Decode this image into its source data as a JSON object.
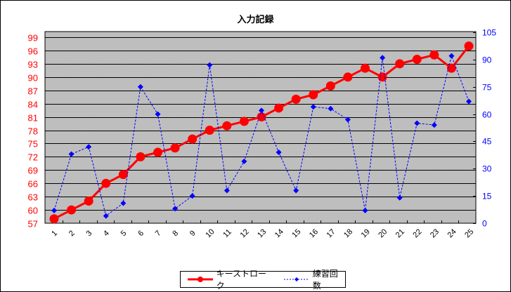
{
  "chart_data": {
    "type": "line",
    "title": "入力記録",
    "xlabel": "",
    "ylabel": "",
    "y2label": "",
    "categories": [
      "1",
      "2",
      "3",
      "4",
      "5",
      "6",
      "7",
      "8",
      "9",
      "10",
      "11",
      "12",
      "13",
      "14",
      "15",
      "16",
      "17",
      "18",
      "19",
      "20",
      "21",
      "22",
      "23",
      "24",
      "25"
    ],
    "series": [
      {
        "name": "キーストローク",
        "axis": "left",
        "color": "#ff0000",
        "style": "solid",
        "marker": "circle",
        "values": [
          58,
          60,
          62,
          66,
          68,
          72,
          73,
          74,
          76,
          78,
          79,
          80,
          81,
          83,
          85,
          86,
          88,
          90,
          92,
          90,
          93,
          94,
          95,
          92,
          97
        ]
      },
      {
        "name": "練習回数",
        "axis": "right",
        "color": "#0000ff",
        "style": "dashed",
        "marker": "diamond",
        "values": [
          7,
          38,
          42,
          4,
          11,
          75,
          60,
          8,
          15,
          87,
          18,
          34,
          62,
          39,
          18,
          64,
          63,
          57,
          7,
          91,
          14,
          55,
          54,
          92,
          67
        ]
      }
    ],
    "ylim": [
      57,
      100
    ],
    "yticks": [
      "99",
      "96",
      "93",
      "90",
      "87",
      "84",
      "81",
      "78",
      "75",
      "72",
      "69",
      "66",
      "63",
      "60",
      "57"
    ],
    "y2lim": [
      0,
      105
    ],
    "y2ticks": [
      "105",
      "90",
      "75",
      "60",
      "45",
      "30",
      "15",
      "0"
    ],
    "grid": true,
    "plot_background": "#c0c0c0",
    "left_tick_color": "#ff0000",
    "right_tick_color": "#0000ff",
    "legend_position": "bottom"
  },
  "legend": {
    "items": [
      {
        "label": "キーストローク",
        "color": "#ff0000"
      },
      {
        "label": "練習回数",
        "color": "#0000ff"
      }
    ]
  }
}
